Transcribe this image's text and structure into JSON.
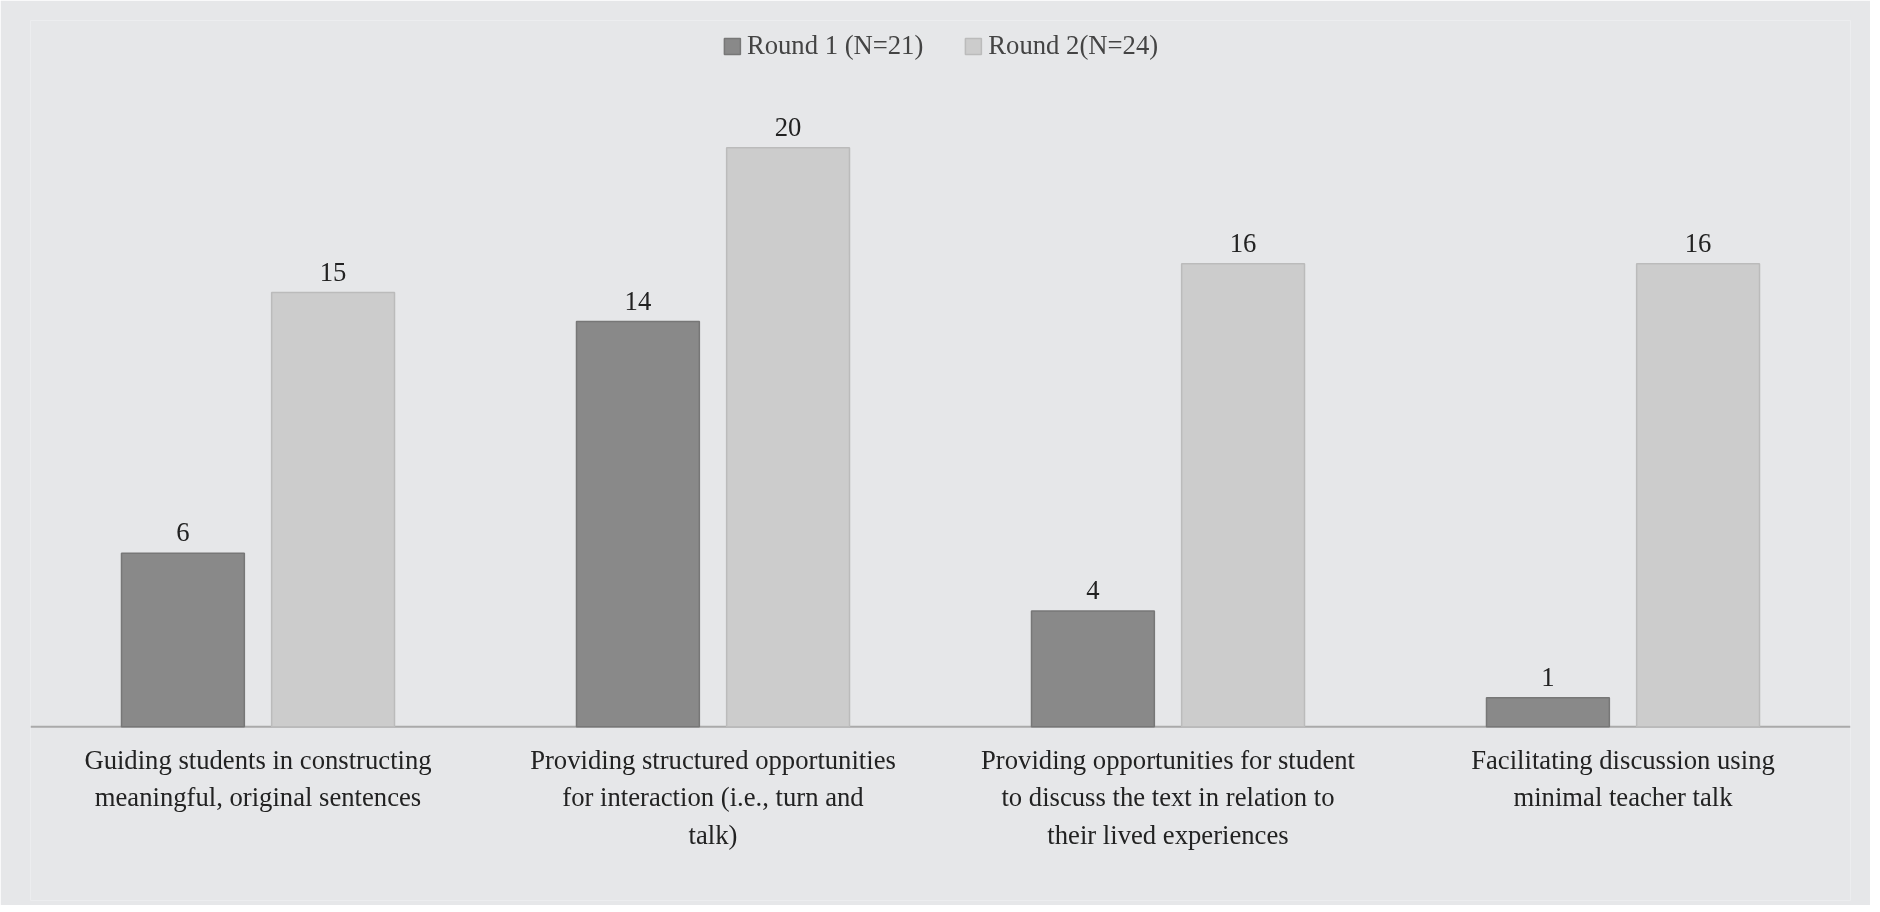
{
  "chart_data": {
    "type": "bar",
    "categories": [
      "Guiding students in constructing meaningful, original sentences",
      "Providing structured opportunities for interaction (i.e., turn and talk)",
      "Providing opportunities for student to discuss the text in relation to their lived experiences",
      "Facilitating discussion using minimal teacher talk"
    ],
    "series": [
      {
        "name": "Round 1 (N=21)",
        "color": "#898989",
        "values": [
          6,
          14,
          4,
          1
        ]
      },
      {
        "name": "Round 2(N=24)",
        "color": "#cccccc",
        "values": [
          15,
          20,
          16,
          16
        ]
      }
    ],
    "data_labels": true,
    "legend": "top"
  }
}
